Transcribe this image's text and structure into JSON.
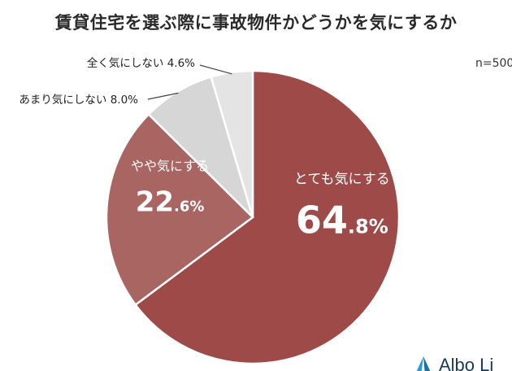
{
  "title": "賃貸住宅を選ぶ際に事故物件かどうかを気にするか",
  "sample_size": "n=500",
  "colors": {
    "slice_1": "#9d4a48",
    "slice_2": "#a86561",
    "slice_3": "#d6d6d6",
    "slice_4": "#e4e4e4",
    "separator": "#ffffff",
    "leader": "#444444",
    "outer_label": "#222222",
    "logo_mark": "#2c9ad6"
  },
  "logo": {
    "text": "Albo Li"
  },
  "chart_data": {
    "type": "pie",
    "title": "賃貸住宅を選ぶ際に事故物件かどうかを気にするか",
    "unit": "%",
    "legend": "none",
    "slices": [
      {
        "label": "とても気にする",
        "value": 64.8,
        "value_int": "64",
        "value_dec": ".8%",
        "label_position": "inside"
      },
      {
        "label": "やや気にする",
        "value": 22.6,
        "value_int": "22",
        "value_dec": ".6%",
        "label_position": "inside"
      },
      {
        "label": "あまり気にしない",
        "value": 8.0,
        "value_text": "8.0%",
        "label_position": "outside"
      },
      {
        "label": "全く気にしない",
        "value": 4.6,
        "value_text": "4.6%",
        "label_position": "outside"
      }
    ]
  }
}
